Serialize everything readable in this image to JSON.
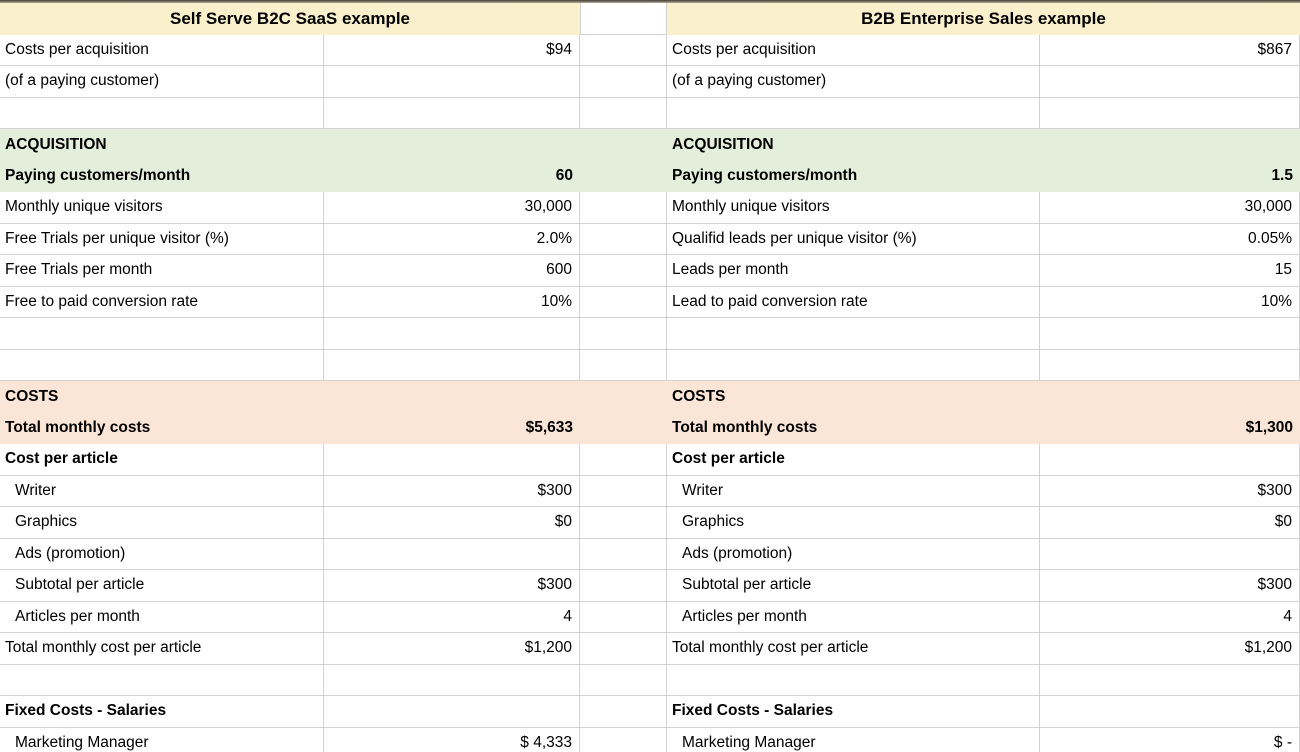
{
  "colors": {
    "header_yellow": "#fbf0cc",
    "section_green": "#e4efdb",
    "section_pink": "#fbe5d6",
    "gridline": "#d2d2d2",
    "text": "#000000"
  },
  "rows": [
    {
      "type": "title",
      "left_label": "Self Serve B2C SaaS example",
      "right_label": "B2B Enterprise Sales example"
    },
    {
      "type": "white",
      "left_label": "Costs per acquisition",
      "left_value": "$94",
      "right_label": "Costs per acquisition",
      "right_value": "$867"
    },
    {
      "type": "white",
      "left_label": "(of a paying customer)",
      "left_value": "",
      "right_label": "(of a paying customer)",
      "right_value": ""
    },
    {
      "type": "white",
      "left_label": "",
      "left_value": "",
      "right_label": "",
      "right_value": ""
    },
    {
      "type": "green",
      "bold": true,
      "left_label": "ACQUISITION",
      "left_value": "",
      "right_label": "ACQUISITION",
      "right_value": ""
    },
    {
      "type": "green",
      "bold": true,
      "left_label": "Paying customers/month",
      "left_value": "60",
      "right_label": "Paying customers/month",
      "right_value": "1.5"
    },
    {
      "type": "white",
      "left_label": "Monthly unique visitors",
      "left_value": "30,000",
      "right_label": "Monthly unique visitors",
      "right_value": "30,000"
    },
    {
      "type": "white",
      "left_label": "Free Trials per unique visitor (%)",
      "left_value": "2.0%",
      "right_label": "Qualifid leads per unique visitor (%)",
      "right_value": "0.05%"
    },
    {
      "type": "white",
      "left_label": "Free Trials per month",
      "left_value": "600",
      "right_label": "Leads per month",
      "right_value": "15"
    },
    {
      "type": "white",
      "left_label": "Free to paid conversion rate",
      "left_value": "10%",
      "right_label": "Lead to paid conversion rate",
      "right_value": "10%"
    },
    {
      "type": "white",
      "left_label": "",
      "left_value": "",
      "right_label": "",
      "right_value": ""
    },
    {
      "type": "white",
      "left_label": "",
      "left_value": "",
      "right_label": "",
      "right_value": ""
    },
    {
      "type": "pink",
      "bold": true,
      "left_label": "COSTS",
      "left_value": "",
      "right_label": "COSTS",
      "right_value": ""
    },
    {
      "type": "pink",
      "bold": true,
      "left_label": "Total monthly costs",
      "left_value": "$5,633",
      "right_label": "Total monthly costs",
      "right_value": "$1,300"
    },
    {
      "type": "white",
      "bold": true,
      "left_label": "Cost per article",
      "left_value": "",
      "right_label": "Cost per article",
      "right_value": ""
    },
    {
      "type": "white",
      "indent": true,
      "left_label": "Writer",
      "left_value": "$300",
      "right_label": "Writer",
      "right_value": "$300"
    },
    {
      "type": "white",
      "indent": true,
      "left_label": "Graphics",
      "left_value": "$0",
      "right_label": "Graphics",
      "right_value": "$0"
    },
    {
      "type": "white",
      "indent": true,
      "left_label": "Ads (promotion)",
      "left_value": "",
      "right_label": "Ads (promotion)",
      "right_value": ""
    },
    {
      "type": "white",
      "indent": true,
      "left_label": "Subtotal per article",
      "left_value": "$300",
      "right_label": "Subtotal per article",
      "right_value": "$300"
    },
    {
      "type": "white",
      "indent": true,
      "left_label": "Articles per month",
      "left_value": "4",
      "right_label": "Articles per month",
      "right_value": "4"
    },
    {
      "type": "white",
      "left_label": "Total monthly cost per article",
      "left_value": "$1,200",
      "right_label": "Total monthly cost per article",
      "right_value": "$1,200"
    },
    {
      "type": "white",
      "left_label": "",
      "left_value": "",
      "right_label": "",
      "right_value": ""
    },
    {
      "type": "white",
      "bold": true,
      "left_label": "Fixed Costs - Salaries",
      "left_value": "",
      "right_label": "Fixed Costs - Salaries",
      "right_value": ""
    },
    {
      "type": "white",
      "indent": true,
      "left_label": "Marketing Manager",
      "left_value": "$ 4,333",
      "right_label": "Marketing Manager",
      "right_value": "$ -"
    }
  ]
}
